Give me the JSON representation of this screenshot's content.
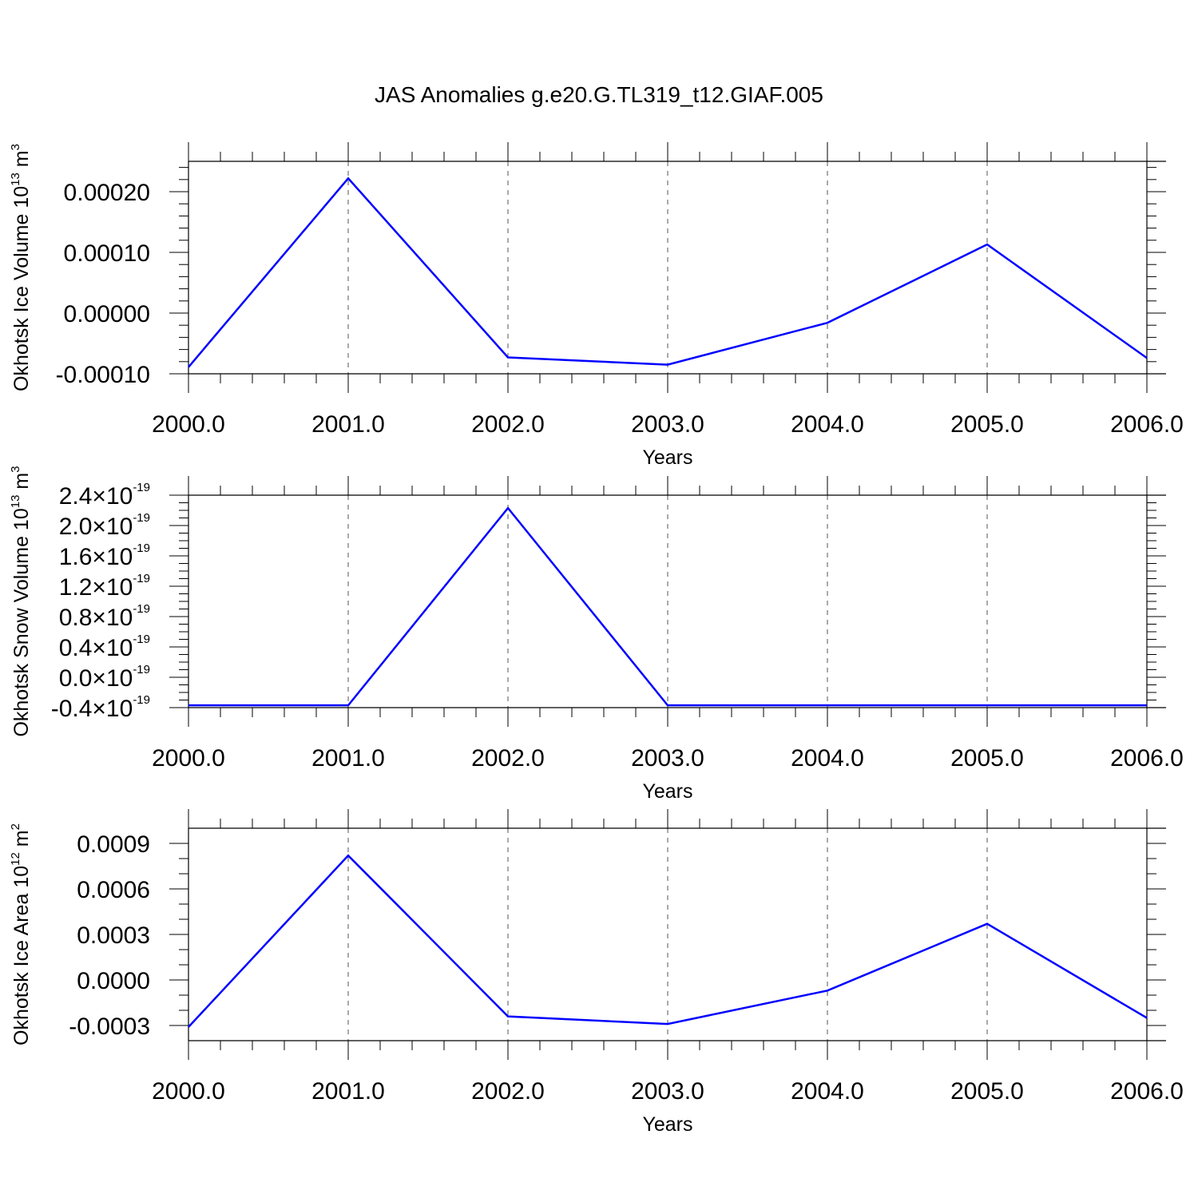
{
  "title": "JAS Anomalies g.e20.G.TL319_t12.GIAF.005",
  "colors": {
    "line": "#0000ff",
    "axis": "#000000",
    "grid": "#555555"
  },
  "chart_data": [
    {
      "type": "line",
      "title": "JAS Anomalies g.e20.G.TL319_t12.GIAF.005",
      "xlabel": "Years",
      "ylabel": {
        "text": "Okhotsk Ice Volume 10",
        "exp": "13",
        "unit": " m",
        "unit_exp": "3"
      },
      "x": [
        2000,
        2001,
        2002,
        2003,
        2004,
        2005,
        2006
      ],
      "x_tick_labels": [
        "2000.0",
        "2001.0",
        "2002.0",
        "2003.0",
        "2004.0",
        "2005.0",
        "2006.0"
      ],
      "xlim": [
        2000,
        2006
      ],
      "ylim": [
        -0.0001,
        0.00025
      ],
      "y_ticks": [
        -0.0001,
        0.0,
        0.0001,
        0.0002
      ],
      "y_tick_labels": [
        "-0.00010",
        "0.00000",
        "0.00010",
        "0.00020"
      ],
      "y_minor_step": 2e-05,
      "series": [
        {
          "values": [
            -8.9e-05,
            0.000222,
            -7.3e-05,
            -8.5e-05,
            -1.6e-05,
            0.000113,
            -7.4e-05
          ]
        }
      ],
      "grid": "vertical dashed at major x ticks"
    },
    {
      "type": "line",
      "xlabel": "Years",
      "ylabel": {
        "text": "Okhotsk Snow Volume 10",
        "exp": "13",
        "unit": " m",
        "unit_exp": "3"
      },
      "x": [
        2000,
        2001,
        2002,
        2003,
        2004,
        2005,
        2006
      ],
      "x_tick_labels": [
        "2000.0",
        "2001.0",
        "2002.0",
        "2003.0",
        "2004.0",
        "2005.0",
        "2006.0"
      ],
      "xlim": [
        2000,
        2006
      ],
      "ylim": [
        -0.4,
        2.4
      ],
      "y_ticks": [
        -0.4,
        0.0,
        0.4,
        0.8,
        1.2,
        1.6,
        2.0,
        2.4
      ],
      "y_tick_labels": [
        {
          "mant": "-0.4",
          "exp": "-19"
        },
        {
          "mant": "0.0",
          "exp": "-19"
        },
        {
          "mant": "0.4",
          "exp": "-19"
        },
        {
          "mant": "0.8",
          "exp": "-19"
        },
        {
          "mant": "1.2",
          "exp": "-19"
        },
        {
          "mant": "1.6",
          "exp": "-19"
        },
        {
          "mant": "2.0",
          "exp": "-19"
        },
        {
          "mant": "2.4",
          "exp": "-19"
        }
      ],
      "y_multiplier_sign": "×10",
      "y_minor_step": 0.1,
      "series": [
        {
          "values": [
            -0.37,
            -0.37,
            2.23,
            -0.37,
            -0.37,
            -0.37,
            -0.37
          ],
          "unit": "10^-19"
        }
      ],
      "grid": "vertical dashed at major x ticks"
    },
    {
      "type": "line",
      "xlabel": "Years",
      "ylabel": {
        "text": "Okhotsk Ice Area 10",
        "exp": "12",
        "unit": " m",
        "unit_exp": "2"
      },
      "x": [
        2000,
        2001,
        2002,
        2003,
        2004,
        2005,
        2006
      ],
      "x_tick_labels": [
        "2000.0",
        "2001.0",
        "2002.0",
        "2003.0",
        "2004.0",
        "2005.0",
        "2006.0"
      ],
      "xlim": [
        2000,
        2006
      ],
      "ylim": [
        -0.0004,
        0.001
      ],
      "y_ticks": [
        -0.0003,
        0.0,
        0.0003,
        0.0006,
        0.0009
      ],
      "y_tick_labels": [
        "-0.0003",
        "0.0000",
        "0.0003",
        "0.0006",
        "0.0009"
      ],
      "y_minor_step": 0.0001,
      "series": [
        {
          "values": [
            -0.00031,
            0.00082,
            -0.00024,
            -0.00029,
            -7e-05,
            0.00037,
            -0.00025
          ]
        }
      ],
      "grid": "vertical dashed at major x ticks"
    }
  ]
}
